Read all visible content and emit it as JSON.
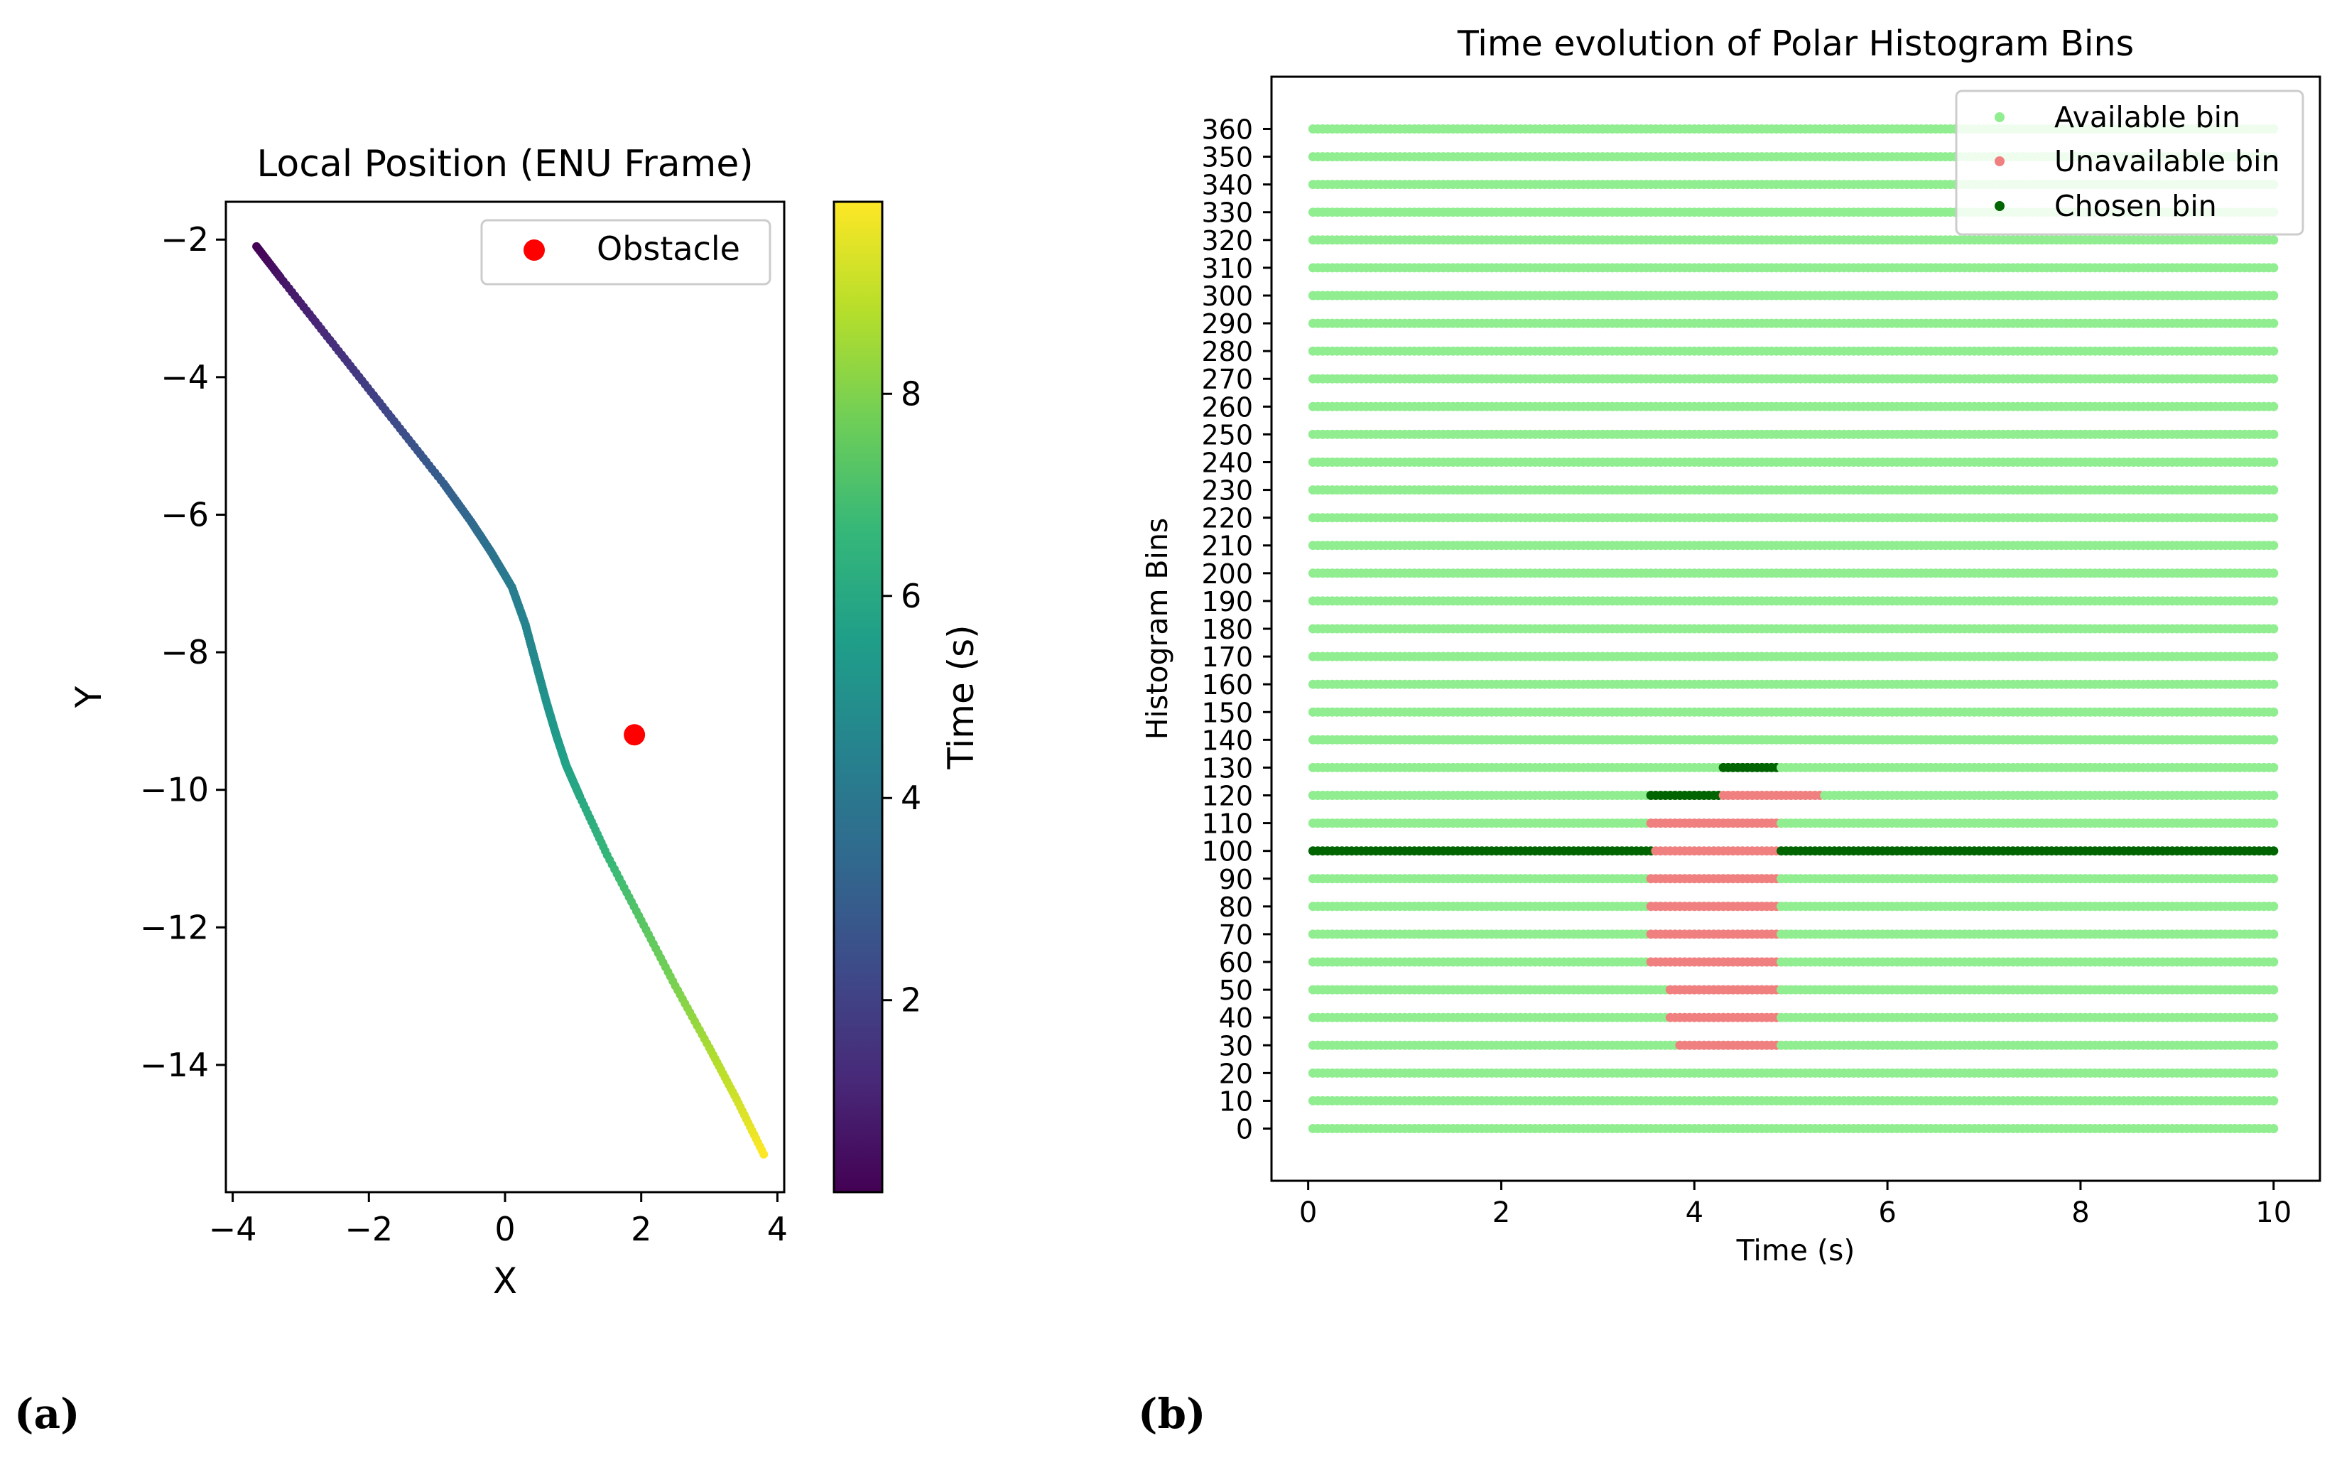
{
  "chart_data": [
    {
      "type": "scatter",
      "title": "Local Position (ENU Frame)",
      "xlabel": "X",
      "ylabel": "Y",
      "xlim": [
        -4.1,
        4.1
      ],
      "ylim": [
        -15.85,
        -1.45
      ],
      "xticks": [
        -4,
        -2,
        0,
        2,
        4
      ],
      "xtick_labels": [
        "−4",
        "−2",
        "0",
        "2",
        "4"
      ],
      "yticks": [
        -2,
        -4,
        -6,
        -8,
        -10,
        -12,
        -14
      ],
      "ytick_labels": [
        "−2",
        "−4",
        "−6",
        "−8",
        "−10",
        "−12",
        "−14"
      ],
      "trajectory": {
        "x": [
          -3.65,
          -3.3,
          -2.7,
          -2.1,
          -1.5,
          -0.9,
          -0.5,
          -0.2,
          0.1,
          0.3,
          0.45,
          0.6,
          0.75,
          0.9,
          1.1,
          1.5,
          2.0,
          2.5,
          3.0,
          3.4,
          3.8
        ],
        "y": [
          -2.1,
          -2.55,
          -3.3,
          -4.05,
          -4.8,
          -5.55,
          -6.1,
          -6.55,
          -7.05,
          -7.6,
          -8.15,
          -8.7,
          -9.2,
          -9.65,
          -10.1,
          -10.95,
          -11.9,
          -12.85,
          -13.75,
          -14.5,
          -15.3
        ],
        "time": [
          0.1,
          0.6,
          1.2,
          1.8,
          2.4,
          3.0,
          3.4,
          3.8,
          4.2,
          4.5,
          4.8,
          5.1,
          5.4,
          5.7,
          6.0,
          6.6,
          7.3,
          7.9,
          8.6,
          9.2,
          9.9
        ]
      },
      "colorbar": {
        "label": "Time (s)",
        "range": [
          0.1,
          9.9
        ],
        "ticks": [
          2,
          4,
          6,
          8
        ],
        "tick_labels": [
          "2",
          "4",
          "6",
          "8"
        ],
        "colormap": "viridis",
        "stops": [
          "#440154",
          "#482878",
          "#3e4a89",
          "#31688e",
          "#26828e",
          "#1f9e89",
          "#35b779",
          "#6ece58",
          "#b5de2b",
          "#fde725"
        ]
      },
      "obstacle": {
        "x": 1.9,
        "y": -9.2,
        "label": "Obstacle",
        "color": "#ff0000"
      },
      "legend": "top-right"
    },
    {
      "type": "scatter",
      "title": "Time evolution of Polar Histogram Bins",
      "xlabel": "Time (s)",
      "ylabel": "Histogram Bins",
      "xlim": [
        -0.38,
        10.48
      ],
      "ylim": [
        -18.8,
        378.8
      ],
      "xticks": [
        0,
        2,
        4,
        6,
        8,
        10
      ],
      "xtick_labels": [
        "0",
        "2",
        "4",
        "6",
        "8",
        "10"
      ],
      "yticks": [
        0,
        10,
        20,
        30,
        40,
        50,
        60,
        70,
        80,
        90,
        100,
        110,
        120,
        130,
        140,
        150,
        160,
        170,
        180,
        190,
        200,
        210,
        220,
        230,
        240,
        250,
        260,
        270,
        280,
        290,
        300,
        310,
        320,
        330,
        340,
        350,
        360
      ],
      "ytick_labels": [
        "0",
        "10",
        "20",
        "30",
        "40",
        "50",
        "60",
        "70",
        "80",
        "90",
        "100",
        "110",
        "120",
        "130",
        "140",
        "150",
        "160",
        "170",
        "180",
        "190",
        "200",
        "210",
        "220",
        "230",
        "240",
        "250",
        "260",
        "270",
        "280",
        "290",
        "300",
        "310",
        "320",
        "330",
        "340",
        "350",
        "360"
      ],
      "time_range": [
        0.05,
        10.0
      ],
      "series": [
        {
          "name": "Available bin",
          "color": "#90ee90",
          "note": "all bins at all times except those listed below"
        },
        {
          "name": "Unavailable bin",
          "color": "#f08080",
          "segments": [
            {
              "bin": 30,
              "t0": 3.85,
              "t1": 4.85
            },
            {
              "bin": 40,
              "t0": 3.75,
              "t1": 4.85
            },
            {
              "bin": 50,
              "t0": 3.75,
              "t1": 4.85
            },
            {
              "bin": 60,
              "t0": 3.55,
              "t1": 4.85
            },
            {
              "bin": 70,
              "t0": 3.55,
              "t1": 4.85
            },
            {
              "bin": 80,
              "t0": 3.55,
              "t1": 4.85
            },
            {
              "bin": 90,
              "t0": 3.55,
              "t1": 4.85
            },
            {
              "bin": 100,
              "t0": 3.55,
              "t1": 4.85
            },
            {
              "bin": 110,
              "t0": 3.55,
              "t1": 4.85
            },
            {
              "bin": 120,
              "t0": 4.3,
              "t1": 5.3
            }
          ]
        },
        {
          "name": "Chosen bin",
          "color": "#006400",
          "segments": [
            {
              "bin": 100,
              "t0": 0.05,
              "t1": 3.55
            },
            {
              "bin": 120,
              "t0": 3.55,
              "t1": 4.25
            },
            {
              "bin": 130,
              "t0": 4.3,
              "t1": 4.85
            },
            {
              "bin": 100,
              "t0": 4.9,
              "t1": 10.0
            }
          ]
        }
      ],
      "legend": "top-right"
    }
  ],
  "panel_labels": [
    "(a)",
    "(b)"
  ]
}
